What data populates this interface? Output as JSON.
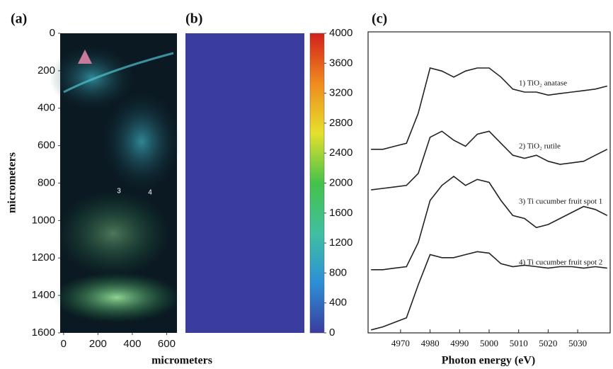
{
  "chart_data": [
    {
      "type": "image",
      "panel": "(a)",
      "xlabel": "micrometers",
      "ylabel": "micrometers",
      "xlim": [
        -20,
        660
      ],
      "xticks": [
        0,
        200,
        400,
        600
      ],
      "ylim": [
        0,
        1600
      ],
      "y_inverted": true,
      "yticks": [
        0,
        200,
        400,
        600,
        800,
        1000,
        1200,
        1400,
        1600
      ],
      "annotations": [
        "3",
        "4"
      ]
    },
    {
      "type": "heatmap",
      "panel": "(b)",
      "values": [
        [
          0
        ]
      ],
      "colormap": [
        "#3a3c9e",
        "#2d8fd6",
        "#3fc0a0",
        "#45c24a",
        "#e6e02c",
        "#f08a1e",
        "#d2201c"
      ],
      "clim": [
        0,
        4000
      ],
      "cticks": [
        0,
        400,
        800,
        1200,
        1600,
        2000,
        2400,
        2800,
        3200,
        3600,
        4000
      ]
    },
    {
      "type": "line",
      "panel": "(c)",
      "xlabel": "Photon energy (eV)",
      "x": [
        4960,
        4964,
        4968,
        4972,
        4976,
        4980,
        4984,
        4988,
        4992,
        4996,
        5000,
        5004,
        5008,
        5012,
        5016,
        5020,
        5024,
        5028,
        5032,
        5036,
        5040
      ],
      "xlim": [
        4959,
        5041
      ],
      "xticks": [
        4970,
        4980,
        4990,
        5000,
        5010,
        5020,
        5030
      ],
      "ylim": [
        0,
        10
      ],
      "series": [
        {
          "name": "1) TiO₂ anatase",
          "color": "#222222",
          "values": [
            6.1,
            6.1,
            6.2,
            6.3,
            7.3,
            8.8,
            8.7,
            8.5,
            8.7,
            8.8,
            8.8,
            8.5,
            8.1,
            8.0,
            8.0,
            7.9,
            7.95,
            8.0,
            8.05,
            8.1,
            8.2
          ]
        },
        {
          "name": "2) TiO₂ rutile",
          "color": "#222222",
          "values": [
            4.75,
            4.8,
            4.85,
            4.9,
            5.3,
            6.5,
            6.7,
            6.4,
            6.2,
            6.6,
            6.7,
            6.3,
            5.9,
            5.8,
            5.9,
            5.7,
            5.6,
            5.65,
            5.7,
            5.9,
            6.1
          ]
        },
        {
          "name": "3) Ti cucumber fruit spot 1",
          "color": "#222222",
          "values": [
            2.1,
            2.1,
            2.15,
            2.2,
            3.0,
            4.4,
            4.9,
            5.2,
            4.9,
            5.1,
            5.0,
            4.4,
            3.9,
            3.8,
            3.5,
            3.6,
            3.8,
            4.0,
            4.2,
            4.1,
            3.9
          ]
        },
        {
          "name": "4) Ti cucumber fruit spot 2",
          "color": "#222222",
          "values": [
            0.1,
            0.2,
            0.35,
            0.5,
            1.6,
            2.6,
            2.5,
            2.5,
            2.6,
            2.7,
            2.65,
            2.3,
            2.2,
            2.25,
            2.2,
            2.15,
            2.2,
            2.2,
            2.15,
            2.2,
            2.15
          ]
        }
      ]
    }
  ]
}
